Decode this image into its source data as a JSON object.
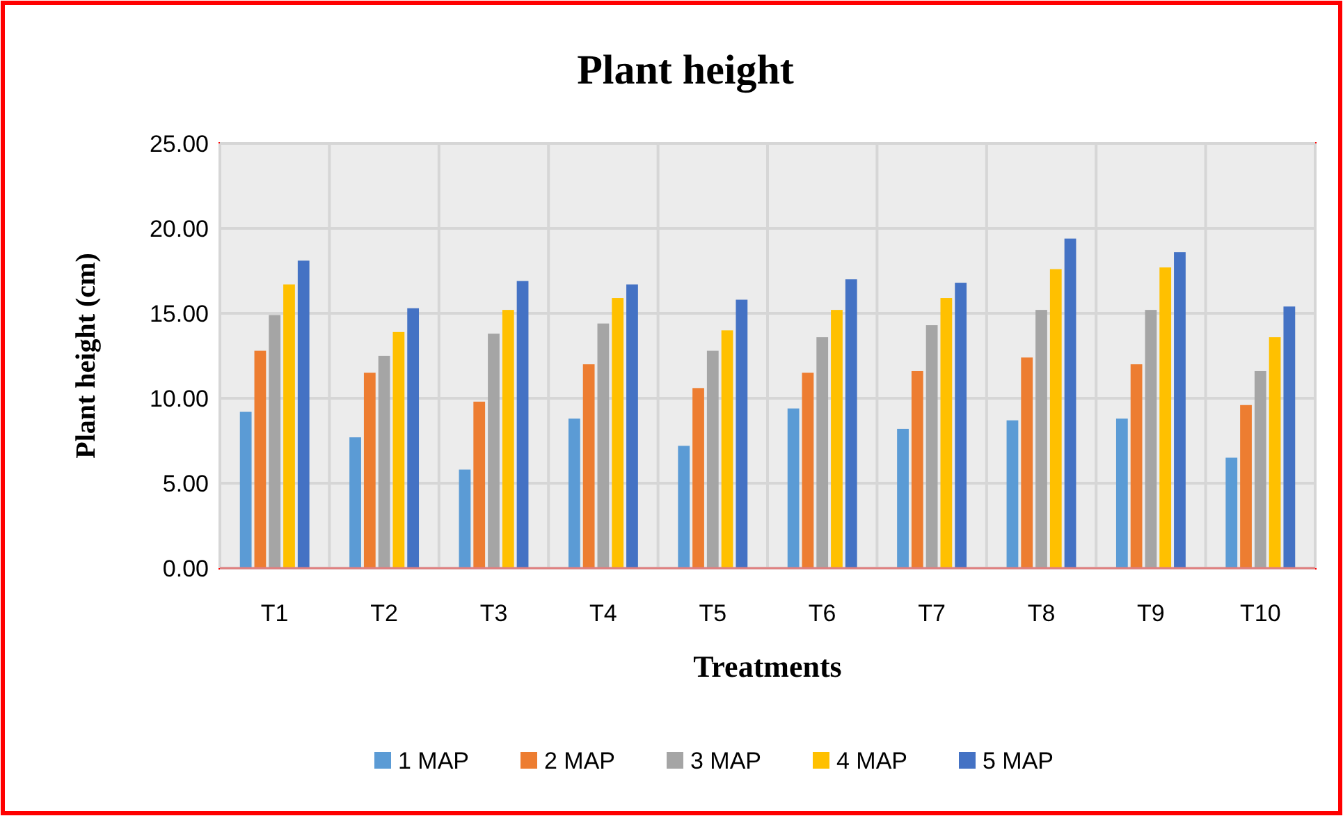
{
  "chart_data": {
    "type": "bar",
    "title": "Plant height",
    "xlabel": "Treatments",
    "ylabel": "Plant height (cm)",
    "categories": [
      "T1",
      "T2",
      "T3",
      "T4",
      "T5",
      "T6",
      "T7",
      "T8",
      "T9",
      "T10"
    ],
    "series": [
      {
        "name": "1 MAP",
        "color": "#5b9bd5",
        "values": [
          9.2,
          7.7,
          5.8,
          8.8,
          7.2,
          9.4,
          8.2,
          8.7,
          8.8,
          6.5
        ]
      },
      {
        "name": "2 MAP",
        "color": "#ed7d31",
        "values": [
          12.8,
          11.5,
          9.8,
          12.0,
          10.6,
          11.5,
          11.6,
          12.4,
          12.0,
          9.6
        ]
      },
      {
        "name": "3 MAP",
        "color": "#a5a5a5",
        "values": [
          14.9,
          12.5,
          13.8,
          14.4,
          12.8,
          13.6,
          14.3,
          15.2,
          15.2,
          11.6
        ]
      },
      {
        "name": "4 MAP",
        "color": "#ffc000",
        "values": [
          16.7,
          13.9,
          15.2,
          15.9,
          14.0,
          15.2,
          15.9,
          17.6,
          17.7,
          13.6
        ]
      },
      {
        "name": "5 MAP",
        "color": "#4472c4",
        "values": [
          18.1,
          15.3,
          16.9,
          16.7,
          15.8,
          17.0,
          16.8,
          19.4,
          18.6,
          15.4
        ]
      }
    ],
    "ylim": [
      0,
      25
    ],
    "yticks": [
      {
        "value": 0,
        "label": "0.00"
      },
      {
        "value": 5,
        "label": "5.00"
      },
      {
        "value": 10,
        "label": "10.00"
      },
      {
        "value": 15,
        "label": "15.00"
      },
      {
        "value": 20,
        "label": "20.00"
      },
      {
        "value": 25,
        "label": "25.00"
      }
    ],
    "grid": true,
    "legend": "bottom"
  }
}
